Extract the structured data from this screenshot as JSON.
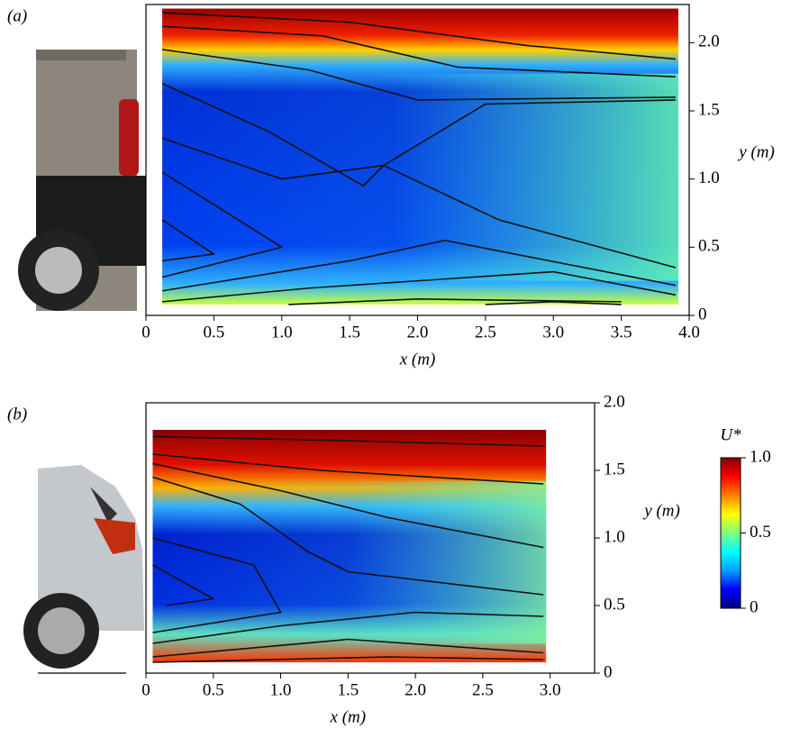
{
  "chart_data": [
    {
      "type": "contour",
      "panel_label": "(a)",
      "xlabel": "x (m)",
      "ylabel": "y (m)",
      "xlim": [
        0,
        4.0
      ],
      "ylim": [
        0,
        2.28
      ],
      "xticks": [
        0,
        0.5,
        {
          "value": 1,
          "label": "1.0"
        },
        1.5,
        {
          "value": 2,
          "label": "2.0"
        },
        2.5,
        {
          "value": 3,
          "label": "3.0"
        },
        3.5,
        {
          "value": 4,
          "label": "4.0"
        }
      ],
      "yticks": [
        0,
        0.5,
        {
          "value": 1,
          "label": "1.0"
        },
        1.5,
        {
          "value": 2,
          "label": "2.0"
        }
      ]
    },
    {
      "type": "contour",
      "panel_label": "(b)",
      "xlabel": "x (m)",
      "ylabel": "y (m)",
      "xlim": [
        0,
        3.33
      ],
      "ylim": [
        0,
        2.0
      ],
      "xticks": [
        0,
        0.5,
        {
          "value": 1,
          "label": "1.0"
        },
        1.5,
        {
          "value": 2,
          "label": "2.0"
        },
        2.5,
        {
          "value": 3,
          "label": "3.0"
        }
      ],
      "yticks": [
        0,
        0.5,
        {
          "value": 1,
          "label": "1.0"
        },
        1.5,
        {
          "value": 2,
          "label": "2.0"
        }
      ]
    },
    {
      "type": "colorbar",
      "title": "U*",
      "ylim": [
        0,
        1.0
      ],
      "yticks": [
        0,
        0.5,
        {
          "value": 1,
          "label": "1.0"
        }
      ],
      "colors": [
        "#00007f",
        "#0000ff",
        "#00a0ff",
        "#00ffff",
        "#80ff80",
        "#ffff00",
        "#ff8000",
        "#ff0000",
        "#7f0000"
      ]
    }
  ]
}
